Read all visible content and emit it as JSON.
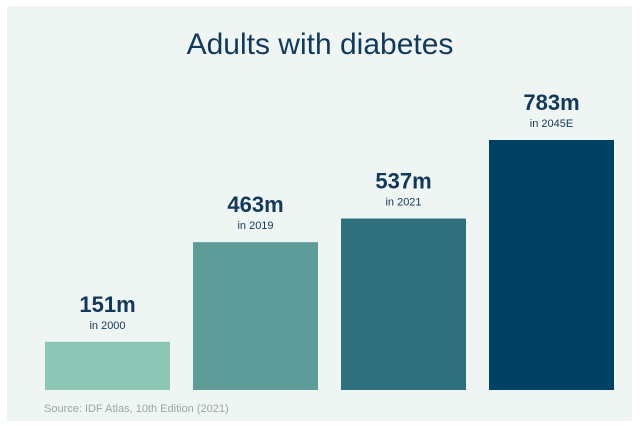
{
  "chart_data": {
    "type": "bar",
    "title": "Adults with diabetes",
    "categories": [
      "in 2000",
      "in 2019",
      "in 2021",
      "in 2045E"
    ],
    "values": [
      151,
      463,
      537,
      783
    ],
    "value_labels": [
      "151m",
      "463m",
      "537m",
      "783m"
    ],
    "colors": [
      "#8cc7b6",
      "#5e9c9a",
      "#2f707e",
      "#004264"
    ],
    "xlabel": "",
    "ylabel": "",
    "ylim": [
      0,
      783
    ],
    "grid": false,
    "legend": "none"
  },
  "source": "Source: IDF Atlas, 10th Edition (2021)"
}
